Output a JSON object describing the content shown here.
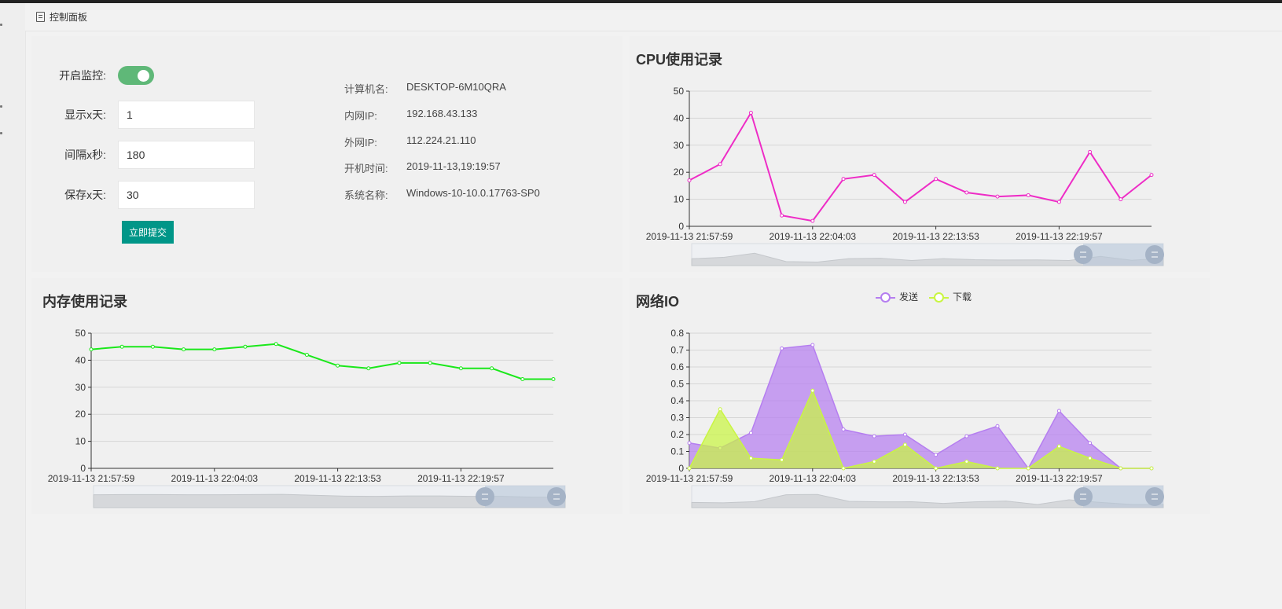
{
  "tab": {
    "label": "控制面板",
    "icon": "document-icon"
  },
  "form": {
    "monitor_label": "开启监控:",
    "monitor_on": true,
    "days_label": "显示x天:",
    "days_value": "1",
    "interval_label": "间隔x秒:",
    "interval_value": "180",
    "keep_label": "保存x天:",
    "keep_value": "30",
    "submit_label": "立即提交"
  },
  "info": [
    {
      "label": "计算机名:",
      "value": "DESKTOP-6M10QRA"
    },
    {
      "label": "内网IP:",
      "value": "192.168.43.133"
    },
    {
      "label": "外网IP:",
      "value": "112.224.21.110"
    },
    {
      "label": "开机时间:",
      "value": "2019-11-13,19:19:57"
    },
    {
      "label": "系统名称:",
      "value": "Windows-10-10.0.17763-SP0"
    }
  ],
  "colors": {
    "cpu": "#ee2cc6",
    "mem": "#1ae81a",
    "send": "#b57ef0",
    "download": "#c9f542",
    "switch": "#5FB878",
    "button": "#009688"
  },
  "chart_data": [
    {
      "id": "cpu",
      "type": "line",
      "title": "CPU使用记录",
      "x_ticks": [
        "2019-11-13 21:57:59",
        "2019-11-13 22:04:03",
        "2019-11-13 22:13:53",
        "2019-11-13 22:19:57"
      ],
      "ylim": [
        0,
        50
      ],
      "y_ticks": [
        0,
        10,
        20,
        30,
        40,
        50
      ],
      "grid": true,
      "series": [
        {
          "values": [
            17,
            23,
            42,
            4,
            2,
            17.5,
            19,
            9,
            17.5,
            12.5,
            11,
            11.5,
            9,
            27.5,
            10,
            19
          ]
        }
      ]
    },
    {
      "id": "mem",
      "type": "line",
      "title": "内存使用记录",
      "x_ticks": [
        "2019-11-13 21:57:59",
        "2019-11-13 22:04:03",
        "2019-11-13 22:13:53",
        "2019-11-13 22:19:57"
      ],
      "ylim": [
        0,
        50
      ],
      "y_ticks": [
        0,
        10,
        20,
        30,
        40,
        50
      ],
      "grid": true,
      "series": [
        {
          "values": [
            44,
            45,
            45,
            44,
            44,
            45,
            46,
            42,
            38,
            37,
            39,
            39,
            37,
            37,
            33,
            33
          ]
        }
      ]
    },
    {
      "id": "net",
      "type": "area",
      "title": "网络IO",
      "legend_position": "top-center",
      "x_ticks": [
        "2019-11-13 21:57:59",
        "2019-11-13 22:04:03",
        "2019-11-13 22:13:53",
        "2019-11-13 22:19:57"
      ],
      "ylim": [
        0,
        0.8
      ],
      "y_ticks": [
        0,
        0.1,
        0.2,
        0.3,
        0.4,
        0.5,
        0.6,
        0.7,
        0.8
      ],
      "grid": true,
      "series": [
        {
          "name": "发送",
          "values": [
            0.15,
            0.12,
            0.21,
            0.71,
            0.73,
            0.23,
            0.19,
            0.2,
            0.08,
            0.19,
            0.25,
            0,
            0.34,
            0.15,
            0,
            0
          ]
        },
        {
          "name": "下载",
          "values": [
            0,
            0.35,
            0.06,
            0.05,
            0.46,
            0,
            0.04,
            0.14,
            0,
            0.04,
            0,
            0,
            0.13,
            0.06,
            0,
            0
          ]
        }
      ]
    }
  ]
}
